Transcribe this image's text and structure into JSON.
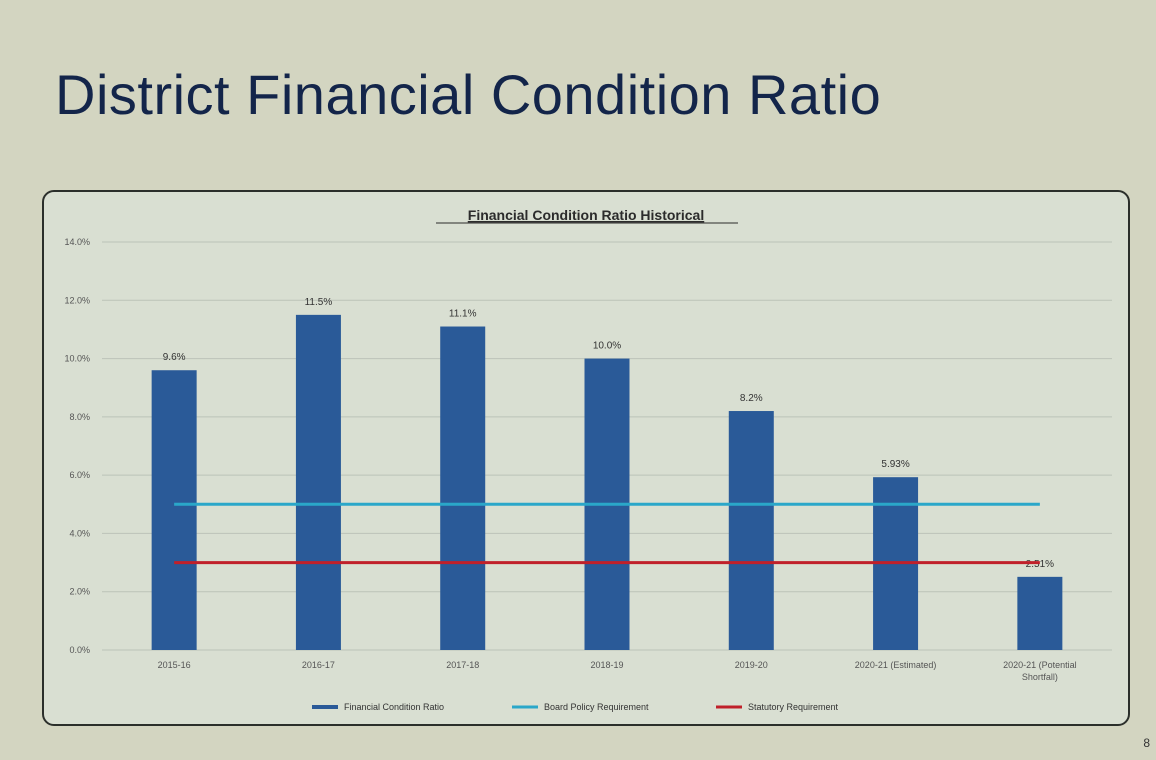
{
  "slide": {
    "title": "District Financial Condition Ratio",
    "page_number": "8"
  },
  "colors": {
    "background": "#d3d5c1",
    "title": "#13254a",
    "bar": "#2a5a98",
    "board_line": "#2aa7c9",
    "statutory_line": "#c0202a"
  },
  "chart_data": {
    "type": "bar",
    "title": "Financial Condition Ratio Historical",
    "xlabel": "",
    "ylabel": "",
    "ylim": [
      0,
      14
    ],
    "yticks": [
      "0.0%",
      "2.0%",
      "4.0%",
      "6.0%",
      "8.0%",
      "10.0%",
      "12.0%",
      "14.0%"
    ],
    "grid": true,
    "legend_position": "bottom",
    "categories": [
      "2015-16",
      "2016-17",
      "2017-18",
      "2018-19",
      "2019-20",
      "2020-21 (Estimated)",
      "2020-21 (Potential Shortfall)"
    ],
    "series": [
      {
        "name": "Financial Condition Ratio",
        "kind": "bar",
        "values": [
          9.6,
          11.5,
          11.1,
          10.0,
          8.2,
          5.93,
          2.51
        ],
        "labels": [
          "9.6%",
          "11.5%",
          "11.1%",
          "10.0%",
          "8.2%",
          "5.93%",
          "2.51%"
        ]
      },
      {
        "name": "Board Policy Requirement",
        "kind": "line",
        "values": [
          5,
          5,
          5,
          5,
          5,
          5,
          5
        ]
      },
      {
        "name": "Statutory Requirement",
        "kind": "line",
        "values": [
          3,
          3,
          3,
          3,
          3,
          3,
          3
        ]
      }
    ]
  }
}
